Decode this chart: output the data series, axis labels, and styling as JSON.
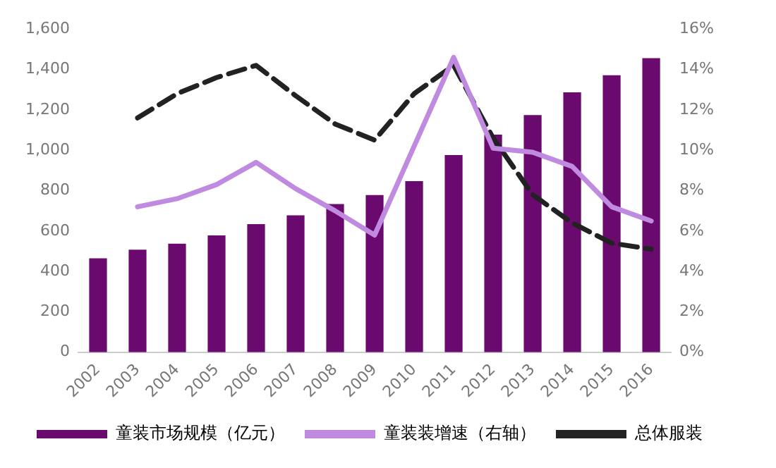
{
  "chart_data": {
    "type": "bar",
    "categories": [
      "2002",
      "2003",
      "2004",
      "2005",
      "2006",
      "2007",
      "2008",
      "2009",
      "2010",
      "2011",
      "2012",
      "2013",
      "2014",
      "2015",
      "2016"
    ],
    "series": [
      {
        "name": "童装市场规模（亿元）",
        "color": "#6a0a6e",
        "values": [
          465,
          508,
          537,
          578,
          634,
          678,
          734,
          778,
          847,
          976,
          1077,
          1174,
          1287,
          1371,
          1456
        ]
      },
      {
        "name": "童装装增速（右轴）",
        "type": "line",
        "axis": "y2",
        "color": "#c08ae0",
        "line_style": "solid",
        "values": [
          null,
          7.2,
          7.6,
          8.3,
          9.4,
          8.1,
          7.0,
          5.8,
          10.2,
          14.6,
          10.1,
          9.9,
          9.2,
          7.2,
          6.5
        ]
      },
      {
        "name": "总体服装",
        "type": "line",
        "axis": "y2",
        "color": "#222222",
        "line_style": "dashed",
        "values": [
          null,
          11.6,
          12.8,
          13.6,
          14.2,
          12.7,
          11.3,
          10.5,
          12.8,
          14.2,
          10.6,
          7.8,
          6.4,
          5.4,
          5.1
        ]
      }
    ],
    "ylim": [
      0,
      1600
    ],
    "yticks": [
      0,
      200,
      400,
      600,
      800,
      {
        "value": 1000,
        "label": "1,000"
      },
      {
        "value": 1200,
        "label": "1,200"
      },
      {
        "value": 1400,
        "label": "1,400"
      },
      {
        "value": 1600,
        "label": "1,600"
      }
    ],
    "y2lim": [
      0,
      16
    ],
    "y2ticks": [
      {
        "value": 0,
        "label": "0%"
      },
      {
        "value": 2,
        "label": "2%"
      },
      {
        "value": 4,
        "label": "4%"
      },
      {
        "value": 6,
        "label": "6%"
      },
      {
        "value": 8,
        "label": "8%"
      },
      {
        "value": 10,
        "label": "10%"
      },
      {
        "value": 12,
        "label": "12%"
      },
      {
        "value": 14,
        "label": "14%"
      },
      {
        "value": 16,
        "label": "16%"
      }
    ],
    "grid": false,
    "legend": "bottom",
    "marker": "none"
  }
}
